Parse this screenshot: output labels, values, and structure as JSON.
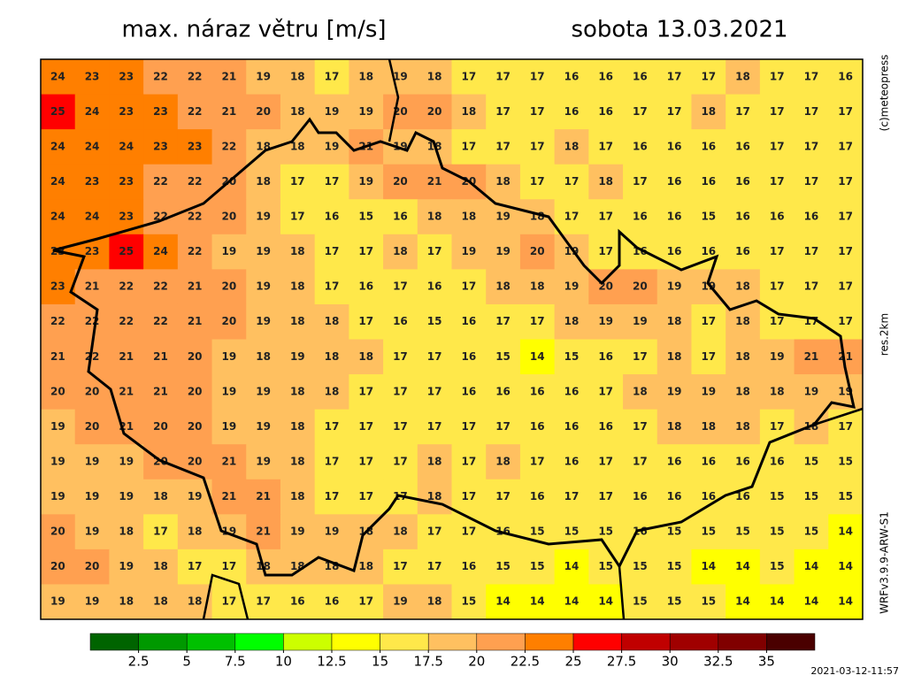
{
  "title": "max. náraz větru [m/s]",
  "date": "sobota 13.03.2021",
  "credit": "(c)meteopress",
  "resolution": "res.2km",
  "model": "WRFv3.9.9-ARW-S1",
  "timestamp": "2021-03-12-11:57",
  "legend": {
    "colors": [
      "#006400",
      "#009900",
      "#00c000",
      "#00ff00",
      "#ccff00",
      "#ffff00",
      "#ffe84a",
      "#ffc060",
      "#ffa050",
      "#ff7f00",
      "#ff0000",
      "#c00000",
      "#a00000",
      "#800000",
      "#4a0000"
    ],
    "ticks": [
      2.5,
      5,
      7.5,
      10,
      12.5,
      15,
      17.5,
      20,
      22.5,
      25,
      27.5,
      30,
      32.5,
      35
    ]
  },
  "grid": {
    "rows": [
      [
        24,
        23,
        23,
        22,
        22,
        21,
        19,
        18,
        17,
        18,
        19,
        18,
        17,
        17,
        17,
        16,
        16,
        16,
        17,
        17,
        18,
        17,
        17,
        16
      ],
      [
        25,
        24,
        23,
        23,
        22,
        21,
        20,
        18,
        19,
        19,
        20,
        20,
        18,
        17,
        17,
        16,
        16,
        17,
        17,
        18,
        17,
        17,
        17,
        17
      ],
      [
        24,
        24,
        24,
        23,
        23,
        22,
        18,
        18,
        19,
        21,
        19,
        18,
        17,
        17,
        17,
        18,
        17,
        16,
        16,
        16,
        16,
        17,
        17,
        17
      ],
      [
        24,
        23,
        23,
        22,
        22,
        20,
        18,
        17,
        17,
        19,
        20,
        21,
        20,
        18,
        17,
        17,
        18,
        17,
        16,
        16,
        16,
        17,
        17,
        17
      ],
      [
        24,
        24,
        23,
        22,
        22,
        20,
        19,
        17,
        16,
        15,
        16,
        18,
        18,
        19,
        18,
        17,
        17,
        16,
        16,
        15,
        16,
        16,
        16,
        17
      ],
      [
        23,
        23,
        25,
        24,
        22,
        19,
        19,
        18,
        17,
        17,
        18,
        17,
        19,
        19,
        20,
        19,
        17,
        16,
        16,
        16,
        16,
        17,
        17,
        17
      ],
      [
        23,
        21,
        22,
        22,
        21,
        20,
        19,
        18,
        17,
        16,
        17,
        16,
        17,
        18,
        18,
        19,
        20,
        20,
        19,
        19,
        18,
        17,
        17,
        17
      ],
      [
        22,
        22,
        22,
        22,
        21,
        20,
        19,
        18,
        18,
        17,
        16,
        15,
        16,
        17,
        17,
        18,
        19,
        19,
        18,
        17,
        18,
        17,
        17,
        17
      ],
      [
        21,
        22,
        21,
        21,
        20,
        19,
        18,
        19,
        18,
        18,
        17,
        17,
        16,
        15,
        14,
        15,
        16,
        17,
        18,
        17,
        18,
        19,
        21,
        21
      ],
      [
        20,
        20,
        21,
        21,
        20,
        19,
        19,
        18,
        18,
        17,
        17,
        17,
        16,
        16,
        16,
        16,
        17,
        18,
        19,
        19,
        18,
        18,
        19,
        19
      ],
      [
        19,
        20,
        21,
        20,
        20,
        19,
        19,
        18,
        17,
        17,
        17,
        17,
        17,
        17,
        16,
        16,
        16,
        17,
        18,
        18,
        18,
        17,
        18,
        17
      ],
      [
        19,
        19,
        19,
        20,
        20,
        21,
        19,
        18,
        17,
        17,
        17,
        18,
        17,
        18,
        17,
        16,
        17,
        17,
        16,
        16,
        16,
        16,
        15,
        15
      ],
      [
        19,
        19,
        19,
        18,
        19,
        21,
        21,
        18,
        17,
        17,
        17,
        18,
        17,
        17,
        16,
        17,
        17,
        16,
        16,
        16,
        16,
        15,
        15,
        15
      ],
      [
        20,
        19,
        18,
        17,
        18,
        19,
        21,
        19,
        19,
        18,
        18,
        17,
        17,
        16,
        15,
        15,
        15,
        16,
        15,
        15,
        15,
        15,
        15,
        14
      ],
      [
        20,
        20,
        19,
        18,
        17,
        17,
        18,
        18,
        18,
        18,
        17,
        17,
        16,
        15,
        15,
        14,
        15,
        15,
        15,
        14,
        14,
        15,
        14,
        14
      ],
      [
        19,
        19,
        18,
        18,
        18,
        17,
        17,
        16,
        16,
        17,
        19,
        18,
        15,
        14,
        14,
        14,
        14,
        15,
        15,
        15,
        14,
        14,
        14,
        14
      ]
    ]
  }
}
